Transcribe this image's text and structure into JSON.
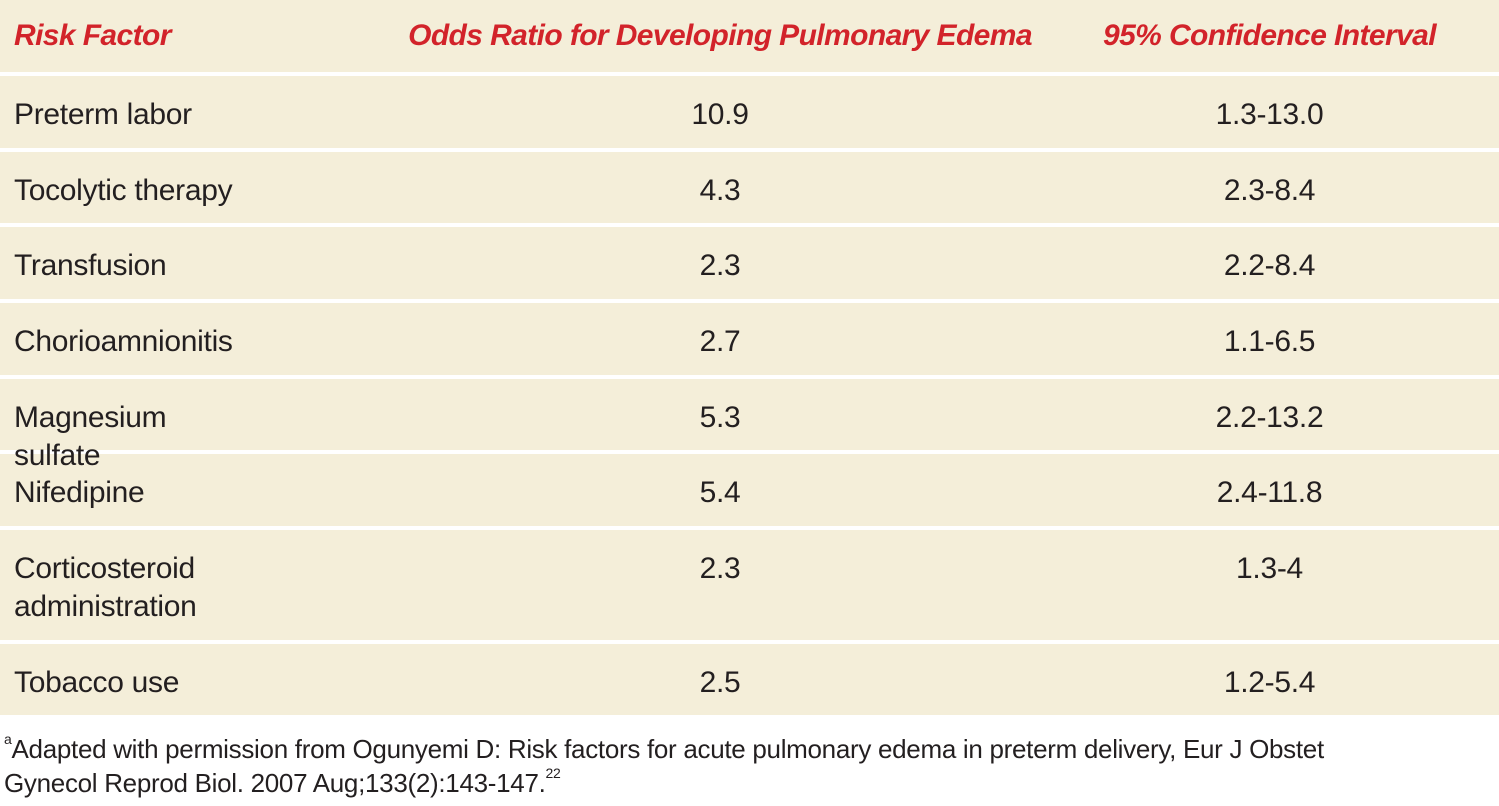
{
  "table": {
    "header": [
      "Risk Factor",
      "Odds Ratio for Developing Pulmonary Edema",
      "95% Confidence Interval"
    ],
    "rows": [
      [
        "Preterm labor",
        "10.9",
        "1.3-13.0"
      ],
      [
        "Tocolytic therapy",
        "4.3",
        "2.3-8.4"
      ],
      [
        "Transfusion",
        "2.3",
        "2.2-8.4"
      ],
      [
        "Chorioamnionitis",
        "2.7",
        "1.1-6.5"
      ],
      [
        "Magnesium sulfate",
        "5.3",
        "2.2-13.2"
      ],
      [
        "Nifedipine",
        "5.4",
        "2.4-11.8"
      ],
      [
        "Corticosteroid administration",
        "2.3",
        "1.3-4"
      ],
      [
        "Tobacco use",
        "2.5",
        "1.2-5.4"
      ]
    ]
  },
  "footnote": {
    "marker": "a",
    "lines": [
      "Adapted with permission from Ogunyemi D: Risk factors for acute pulmonary edema in preterm delivery, Eur J Obstet",
      "Gynecol Reprod Biol. 2007 Aug;133(2):143-147."
    ],
    "reference": "22"
  }
}
